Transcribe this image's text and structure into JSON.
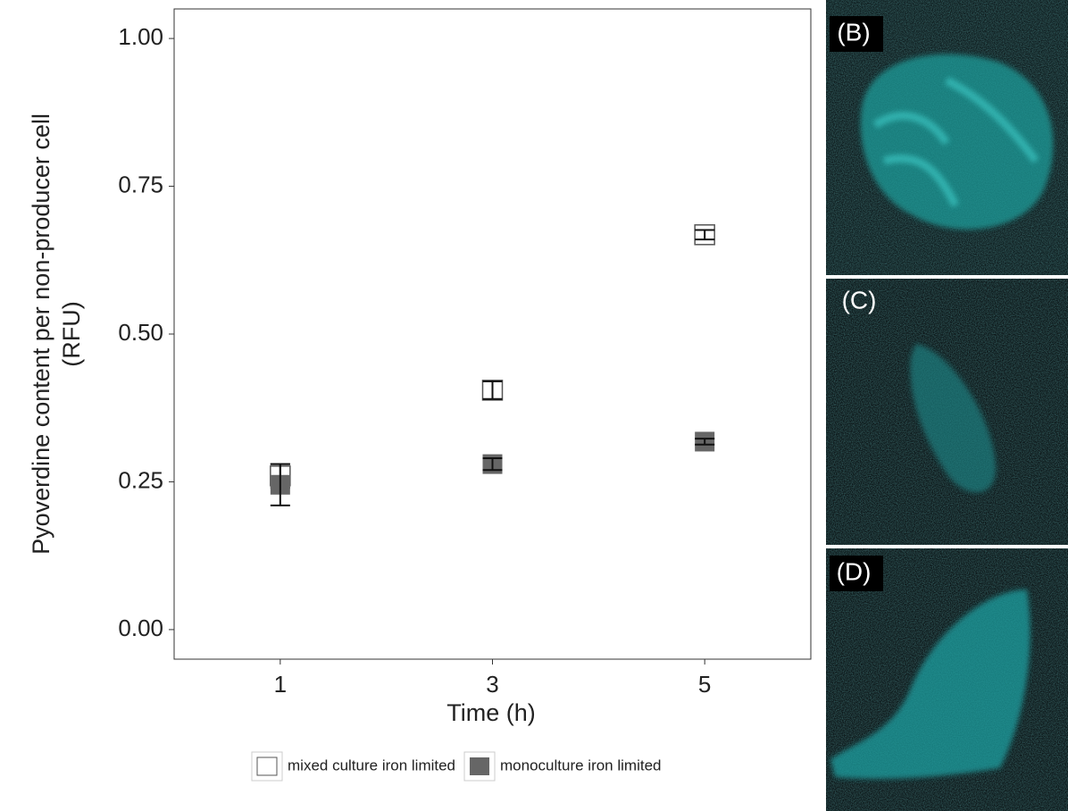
{
  "chart_data": {
    "type": "errorbox",
    "y_label": [
      "Pyoverdine content per non-producer cell",
      "(RFU)"
    ],
    "x_label": "Time (h)",
    "categories": [
      "1",
      "3",
      "5"
    ],
    "series": [
      {
        "name": "mixed culture iron limited",
        "color": "#ffffff",
        "values": [
          0.26,
          0.405,
          0.668
        ],
        "errors": [
          0.02,
          0.015,
          0.008
        ]
      },
      {
        "name": "monoculture iron limited",
        "color": "#666666",
        "values": [
          0.245,
          0.28,
          0.318
        ],
        "errors": [
          0.035,
          0.01,
          0.005
        ]
      }
    ],
    "ylim": [
      -0.05,
      1.05
    ],
    "yticks": [
      {
        "value": 0,
        "label": "0.00"
      },
      {
        "value": 0.25,
        "label": "0.25"
      },
      {
        "value": 0.5,
        "label": "0.50"
      },
      {
        "value": 0.75,
        "label": "0.75"
      },
      {
        "value": 1,
        "label": "1.00"
      }
    ],
    "grid": false,
    "legend": "bottom"
  },
  "panels": [
    "(B)",
    "(C)",
    "(D)"
  ]
}
